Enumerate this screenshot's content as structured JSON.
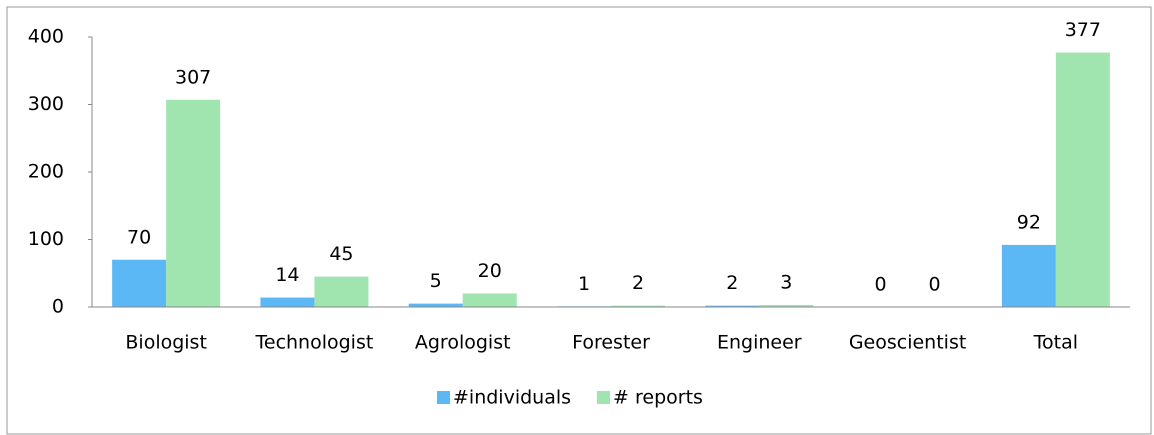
{
  "chart_data": {
    "type": "bar",
    "categories": [
      "Biologist",
      "Technologist",
      "Agrologist",
      "Forester",
      "Engineer",
      "Geoscientist",
      "Total"
    ],
    "series": [
      {
        "name": "#individuals",
        "color": "#5bb8f5",
        "values": [
          70,
          14,
          5,
          1,
          2,
          0,
          92
        ]
      },
      {
        "name": "# reports",
        "color": "#a0e4b0",
        "values": [
          307,
          45,
          20,
          2,
          3,
          0,
          377
        ]
      }
    ],
    "ylim": [
      0,
      400
    ],
    "yticks": [
      0,
      100,
      200,
      300,
      400
    ],
    "grid": false,
    "legend": "bottom"
  }
}
